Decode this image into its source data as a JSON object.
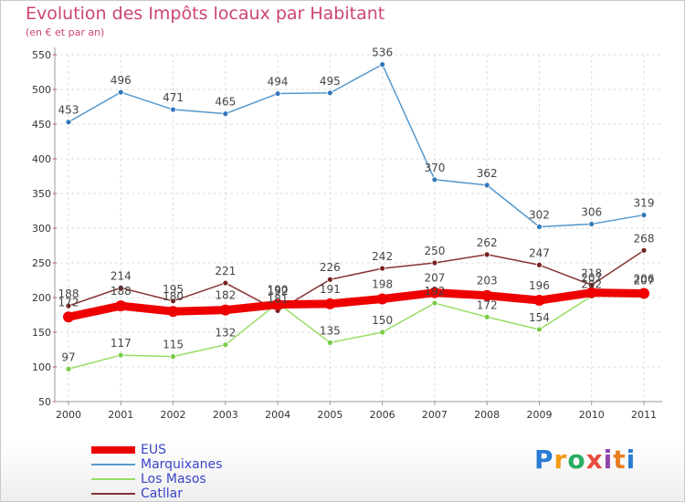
{
  "chart_data": {
    "type": "line",
    "title": "Evolution des Impôts locaux par Habitant",
    "subtitle": "(en € et par an)",
    "xlabel": "",
    "ylabel": "",
    "categories": [
      "2000",
      "2001",
      "2002",
      "2003",
      "2004",
      "2005",
      "2006",
      "2007",
      "2008",
      "2009",
      "2010",
      "2011"
    ],
    "ylim": [
      50,
      550
    ],
    "yticks": [
      50,
      100,
      150,
      200,
      250,
      300,
      350,
      400,
      450,
      500,
      550
    ],
    "grid": true,
    "legend_position": "bottom-left",
    "series": [
      {
        "name": "EUS",
        "color": "#ee0000",
        "values": [
          172,
          188,
          180,
          182,
          190,
          191,
          198,
          207,
          203,
          196,
          207,
          206
        ]
      },
      {
        "name": "Marquixanes",
        "color": "#5599cc",
        "values": [
          453,
          496,
          471,
          465,
          494,
          495,
          536,
          370,
          362,
          302,
          306,
          319
        ]
      },
      {
        "name": "Los Masos",
        "color": "#99dd66",
        "values": [
          97,
          117,
          115,
          132,
          192,
          135,
          150,
          192,
          172,
          154,
          202,
          207
        ]
      },
      {
        "name": "Catllar",
        "color": "#883333",
        "values": [
          188,
          214,
          195,
          221,
          181,
          226,
          242,
          250,
          262,
          247,
          218,
          268
        ]
      }
    ]
  },
  "logo": {
    "text": "Proxiti",
    "colors": [
      "#2a7bd4",
      "#f39c12",
      "#27ae60",
      "#e74c3c",
      "#8e44ad",
      "#e67e22",
      "#2a7bd4"
    ]
  }
}
